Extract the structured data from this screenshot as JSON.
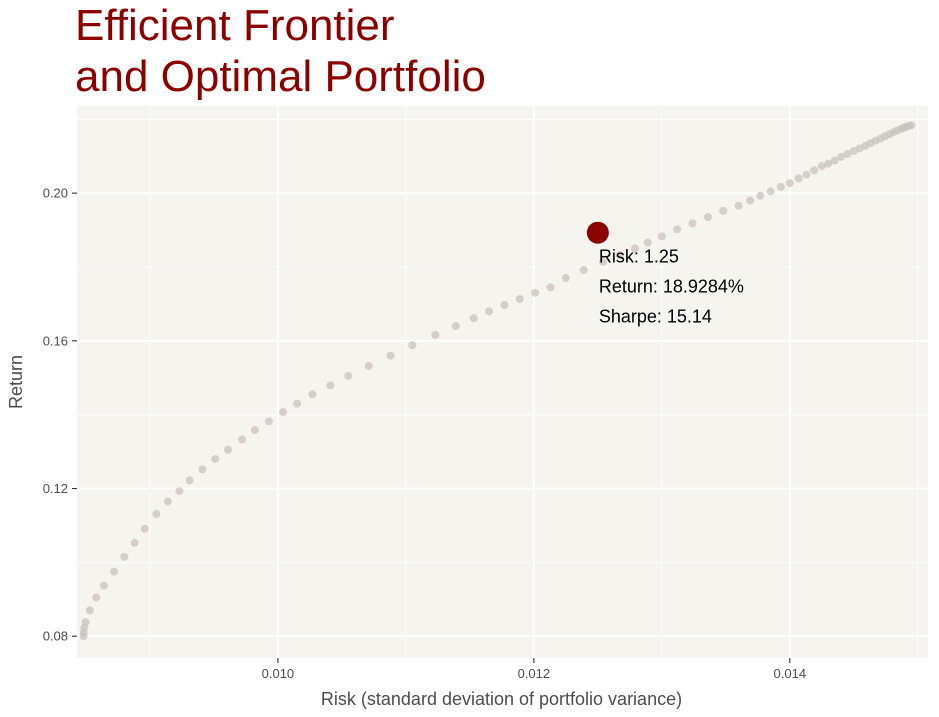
{
  "chart_data": {
    "type": "scatter",
    "title_lines": [
      "Efficient Frontier",
      "and Optimal Portfolio"
    ],
    "xlabel": "Risk (standard deviation of portfolio variance)",
    "ylabel": "Return",
    "xlim": [
      0.00843,
      0.01508
    ],
    "ylim": [
      0.0741,
      0.2236
    ],
    "x_ticks": [
      0.01,
      0.012,
      0.014
    ],
    "x_tick_labels": [
      "0.010",
      "0.012",
      "0.014"
    ],
    "y_ticks": [
      0.08,
      0.12,
      0.16,
      0.2
    ],
    "y_tick_labels": [
      "0.08",
      "0.12",
      "0.16",
      "0.20"
    ],
    "grid": true,
    "series": [
      {
        "role": "frontier",
        "points": [
          [
            0.00848,
            0.08
          ],
          [
            0.008482,
            0.081
          ],
          [
            0.008487,
            0.0823
          ],
          [
            0.008497,
            0.0838
          ],
          [
            0.00853,
            0.087
          ],
          [
            0.00858,
            0.0905
          ],
          [
            0.00864,
            0.0937
          ],
          [
            0.00872,
            0.0975
          ],
          [
            0.0088,
            0.1015
          ],
          [
            0.00888,
            0.1053
          ],
          [
            0.00896,
            0.1091
          ],
          [
            0.00905,
            0.1131
          ],
          [
            0.00914,
            0.1165
          ],
          [
            0.00923,
            0.1193
          ],
          [
            0.00931,
            0.1222
          ],
          [
            0.00941,
            0.1252
          ],
          [
            0.00951,
            0.128
          ],
          [
            0.00961,
            0.1305
          ],
          [
            0.00972,
            0.1333
          ],
          [
            0.00982,
            0.1358
          ],
          [
            0.00993,
            0.1382
          ],
          [
            0.01004,
            0.1407
          ],
          [
            0.01015,
            0.143
          ],
          [
            0.01027,
            0.1455
          ],
          [
            0.01041,
            0.1479
          ],
          [
            0.01055,
            0.1505
          ],
          [
            0.01071,
            0.1532
          ],
          [
            0.01088,
            0.156
          ],
          [
            0.01105,
            0.1588
          ],
          [
            0.01123,
            0.1616
          ],
          [
            0.01139,
            0.164
          ],
          [
            0.01153,
            0.1661
          ],
          [
            0.01165,
            0.168
          ],
          [
            0.01177,
            0.1697
          ],
          [
            0.01189,
            0.1713
          ],
          [
            0.01201,
            0.173
          ],
          [
            0.01213,
            0.1745
          ],
          [
            0.01225,
            0.177
          ],
          [
            0.01239,
            0.1792
          ],
          [
            0.01254,
            0.1814
          ],
          [
            0.01267,
            0.1832
          ],
          [
            0.01279,
            0.185
          ],
          [
            0.01289,
            0.1866
          ],
          [
            0.013,
            0.1883
          ],
          [
            0.01312,
            0.1902
          ],
          [
            0.01324,
            0.1918
          ],
          [
            0.01336,
            0.1935
          ],
          [
            0.01348,
            0.1952
          ],
          [
            0.0136,
            0.1966
          ],
          [
            0.01369,
            0.198
          ],
          [
            0.01377,
            0.1993
          ],
          [
            0.01385,
            0.2005
          ],
          [
            0.01393,
            0.2017
          ],
          [
            0.014,
            0.2027
          ],
          [
            0.01407,
            0.204
          ],
          [
            0.01413,
            0.205
          ],
          [
            0.01419,
            0.2062
          ],
          [
            0.01425,
            0.2073
          ],
          [
            0.0143,
            0.208
          ],
          [
            0.01435,
            0.2088
          ],
          [
            0.0144,
            0.2098
          ],
          [
            0.01445,
            0.2106
          ],
          [
            0.0145,
            0.2114
          ],
          [
            0.014545,
            0.2121
          ],
          [
            0.01459,
            0.2128
          ],
          [
            0.01463,
            0.2135
          ],
          [
            0.01467,
            0.2142
          ],
          [
            0.01471,
            0.2148
          ],
          [
            0.014745,
            0.2154
          ],
          [
            0.01478,
            0.216
          ],
          [
            0.01481,
            0.2165
          ],
          [
            0.01484,
            0.217
          ],
          [
            0.01487,
            0.2174
          ],
          [
            0.01489,
            0.2177
          ],
          [
            0.01491,
            0.218
          ],
          [
            0.01493,
            0.2182
          ],
          [
            0.01495,
            0.2184
          ]
        ]
      },
      {
        "role": "optimal",
        "points": [
          [
            0.0125,
            0.189284
          ]
        ]
      }
    ],
    "annotation": {
      "lines": [
        "Risk: 1.25",
        "Return: 18.9284%",
        "Sharpe: 15.14"
      ]
    },
    "colors": {
      "title": "#8b0000",
      "optimal_point": "#8b0000",
      "frontier_points": "#c8c3bc",
      "panel_background": "#f6f4ef",
      "grid": "#ffffff"
    }
  }
}
